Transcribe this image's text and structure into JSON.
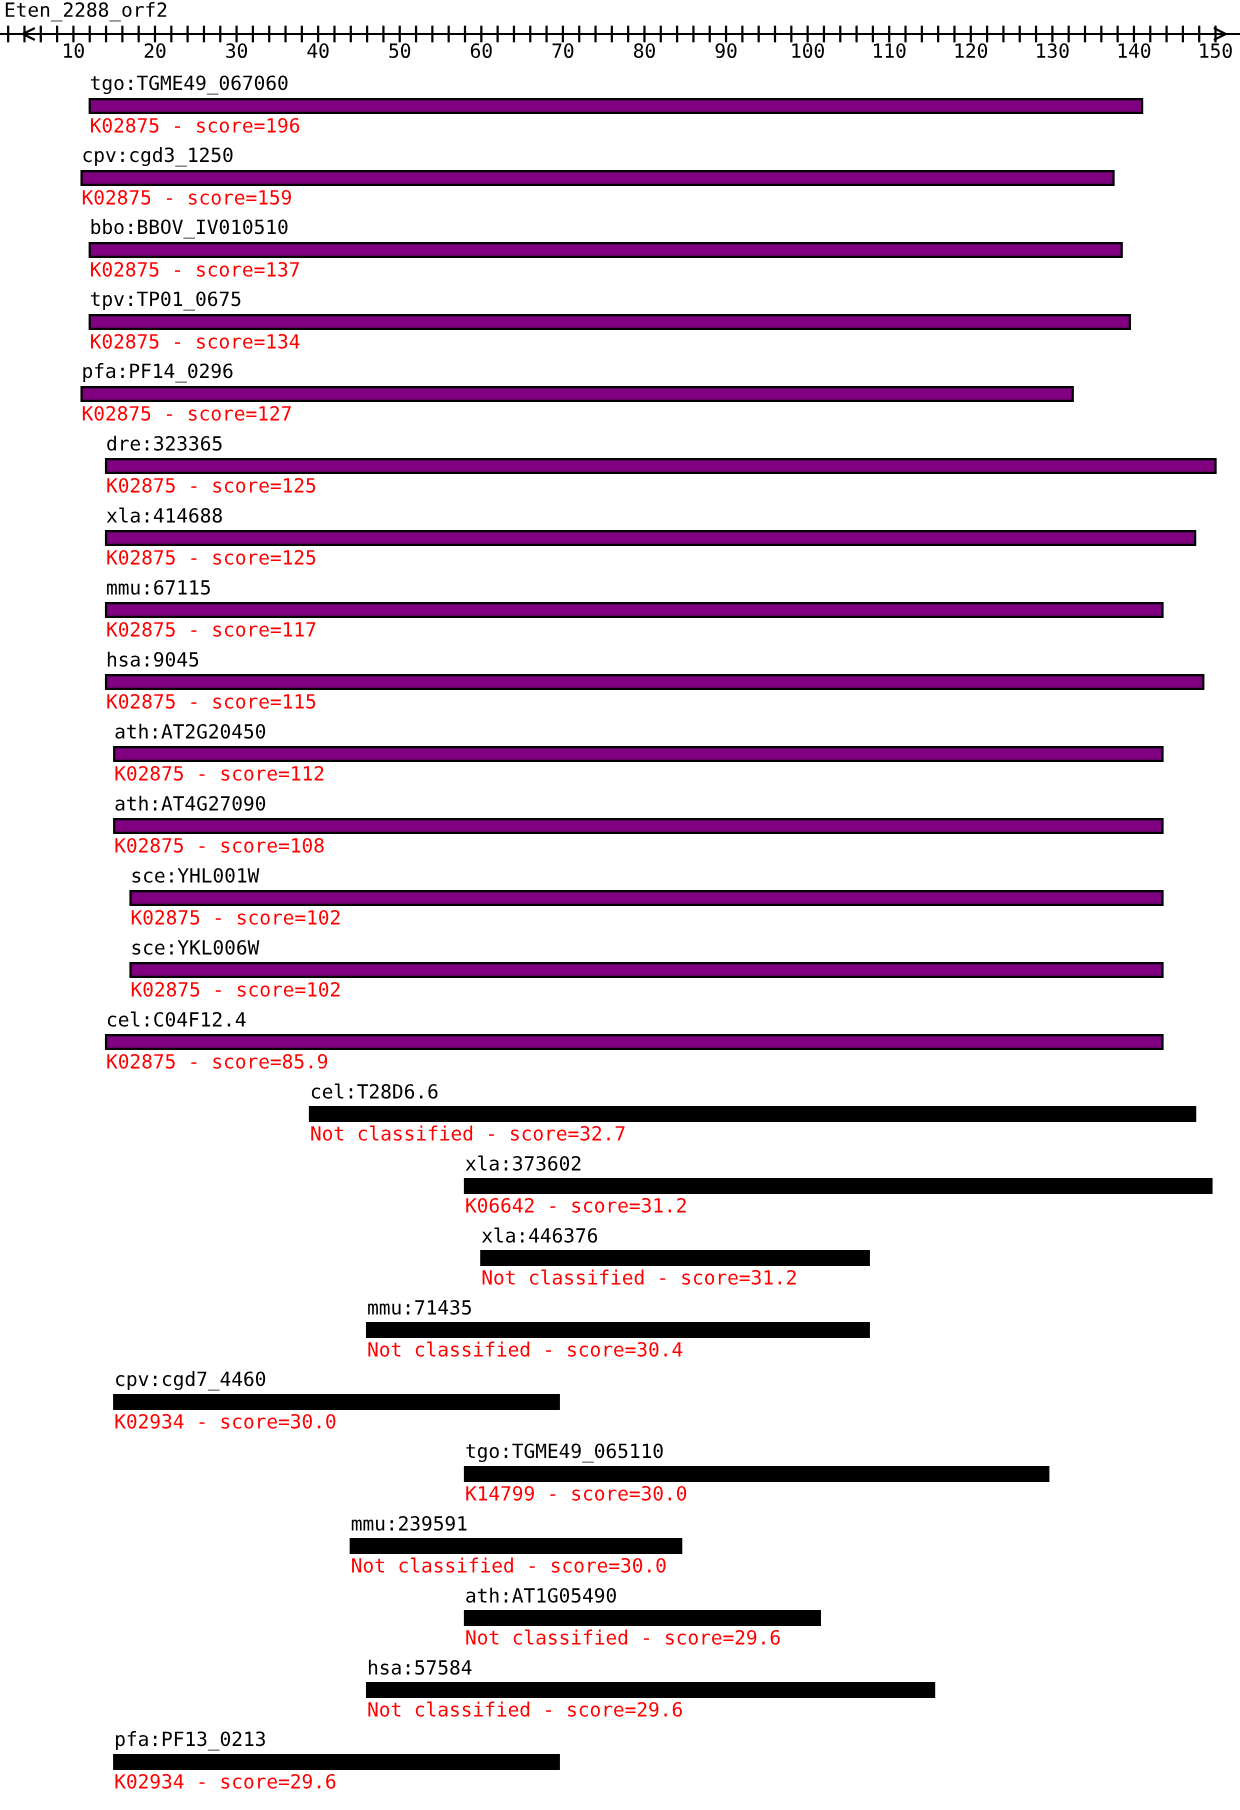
{
  "chart_data": {
    "type": "bar",
    "orientation": "horizontal",
    "title": "Eten_2288_orf2",
    "categories": [
      "tgo:TGME49_067060",
      "cpv:cgd3_1250",
      "bbo:BBOV_IV010510",
      "tpv:TP01_0675",
      "pfa:PF14_0296",
      "dre:323365",
      "xla:414688",
      "mmu:67115",
      "hsa:9045",
      "ath:AT2G20450",
      "ath:AT4G27090",
      "sce:YHL001W",
      "sce:YKL006W",
      "cel:C04F12.4",
      "cel:T28D6.6",
      "xla:373602",
      "xla:446376",
      "mmu:71435",
      "cpv:cgd7_4460",
      "tgo:TGME49_065110",
      "mmu:239591",
      "ath:AT1G05490",
      "hsa:57584",
      "pfa:PF13_0213"
    ],
    "base": [
      12,
      11,
      12,
      12,
      11,
      14,
      14,
      14,
      14,
      15,
      15,
      17,
      17,
      14,
      39,
      58,
      60,
      46,
      15,
      58,
      44,
      58,
      46,
      15
    ],
    "values": [
      129,
      126.5,
      126.5,
      127.5,
      121.5,
      136,
      133.5,
      129.5,
      134.5,
      128.5,
      128.5,
      126.5,
      126.5,
      129.5,
      108.5,
      91.5,
      47.5,
      61.5,
      54.5,
      71.5,
      40.5,
      43.5,
      69.5,
      54.5
    ],
    "colors": [
      "#800080",
      "#800080",
      "#800080",
      "#800080",
      "#800080",
      "#800080",
      "#800080",
      "#800080",
      "#800080",
      "#800080",
      "#800080",
      "#800080",
      "#800080",
      "#800080",
      "#000000",
      "#000000",
      "#000000",
      "#000000",
      "#000000",
      "#000000",
      "#000000",
      "#000000",
      "#000000",
      "#000000"
    ],
    "xlim": [
      1,
      153
    ],
    "xticks": [
      {
        "value": 2,
        "label": null
      },
      {
        "value": 4,
        "label": null
      },
      {
        "value": 6,
        "label": null
      },
      {
        "value": 8,
        "label": null
      },
      10,
      {
        "value": 12,
        "label": null
      },
      {
        "value": 14,
        "label": null
      },
      {
        "value": 16,
        "label": null
      },
      {
        "value": 18,
        "label": null
      },
      20,
      {
        "value": 22,
        "label": null
      },
      {
        "value": 24,
        "label": null
      },
      {
        "value": 26,
        "label": null
      },
      {
        "value": 28,
        "label": null
      },
      30,
      {
        "value": 32,
        "label": null
      },
      {
        "value": 34,
        "label": null
      },
      {
        "value": 36,
        "label": null
      },
      {
        "value": 38,
        "label": null
      },
      40,
      {
        "value": 42,
        "label": null
      },
      {
        "value": 44,
        "label": null
      },
      {
        "value": 46,
        "label": null
      },
      {
        "value": 48,
        "label": null
      },
      50,
      {
        "value": 52,
        "label": null
      },
      {
        "value": 54,
        "label": null
      },
      {
        "value": 56,
        "label": null
      },
      {
        "value": 58,
        "label": null
      },
      60,
      {
        "value": 62,
        "label": null
      },
      {
        "value": 64,
        "label": null
      },
      {
        "value": 66,
        "label": null
      },
      {
        "value": 68,
        "label": null
      },
      70,
      {
        "value": 72,
        "label": null
      },
      {
        "value": 74,
        "label": null
      },
      {
        "value": 76,
        "label": null
      },
      {
        "value": 78,
        "label": null
      },
      80,
      {
        "value": 82,
        "label": null
      },
      {
        "value": 84,
        "label": null
      },
      {
        "value": 86,
        "label": null
      },
      {
        "value": 88,
        "label": null
      },
      90,
      {
        "value": 92,
        "label": null
      },
      {
        "value": 94,
        "label": null
      },
      {
        "value": 96,
        "label": null
      },
      {
        "value": 98,
        "label": null
      },
      100,
      {
        "value": 102,
        "label": null
      },
      {
        "value": 104,
        "label": null
      },
      {
        "value": 106,
        "label": null
      },
      {
        "value": 108,
        "label": null
      },
      110,
      {
        "value": 112,
        "label": null
      },
      {
        "value": 114,
        "label": null
      },
      {
        "value": 116,
        "label": null
      },
      {
        "value": 118,
        "label": null
      },
      120,
      {
        "value": 122,
        "label": null
      },
      {
        "value": 124,
        "label": null
      },
      {
        "value": 126,
        "label": null
      },
      {
        "value": 128,
        "label": null
      },
      130,
      {
        "value": 132,
        "label": null
      },
      {
        "value": 134,
        "label": null
      },
      {
        "value": 136,
        "label": null
      },
      {
        "value": 138,
        "label": null
      },
      140,
      {
        "value": 142,
        "label": null
      },
      {
        "value": 144,
        "label": null
      },
      {
        "value": 146,
        "label": null
      },
      {
        "value": 148,
        "label": null
      },
      150
    ],
    "tick_labels": "x",
    "grid": false,
    "legend": false,
    "annotations": [
      "K02875 - score=196",
      "K02875 - score=159",
      "K02875 - score=137",
      "K02875 - score=134",
      "K02875 - score=127",
      "K02875 - score=125",
      "K02875 - score=125",
      "K02875 - score=117",
      "K02875 - score=115",
      "K02875 - score=112",
      "K02875 - score=108",
      "K02875 - score=102",
      "K02875 - score=102",
      "K02875 - score=85.9",
      "Not classified - score=32.7",
      "K06642 - score=31.2",
      "Not classified - score=31.2",
      "Not classified - score=30.4",
      "K02934 - score=30.0",
      "K14799 - score=30.0",
      "Not classified - score=30.0",
      "Not classified - score=29.6",
      "Not classified - score=29.6",
      "K02934 - score=29.6"
    ]
  }
}
